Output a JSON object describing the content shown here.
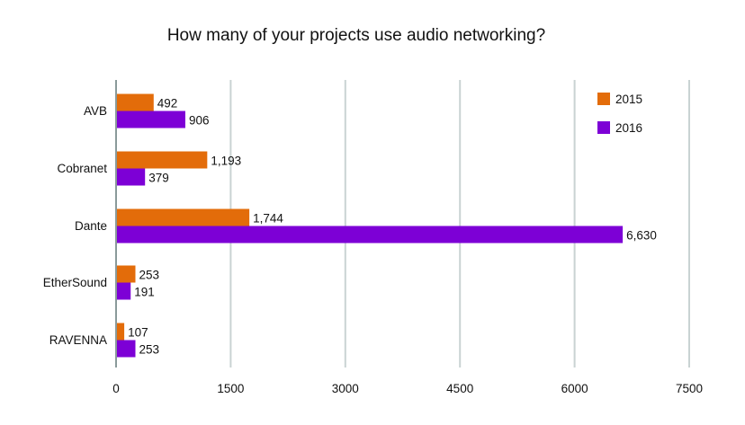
{
  "chart_data": {
    "type": "bar",
    "orientation": "horizontal",
    "title": "How many of your projects use audio networking?",
    "xlabel": "",
    "ylabel": "",
    "categories": [
      "AVB",
      "Cobranet",
      "Dante",
      "EtherSound",
      "RAVENNA"
    ],
    "series": [
      {
        "name": "2015",
        "color": "#e36c0a",
        "values": [
          492,
          1193,
          1744,
          253,
          107
        ],
        "labels": [
          "492",
          "1,193",
          "1,744",
          "253",
          "107"
        ]
      },
      {
        "name": "2016",
        "color": "#7d00d6",
        "values": [
          906,
          379,
          6630,
          191,
          253
        ],
        "labels": [
          "906",
          "379",
          "6,630",
          "191",
          "253"
        ]
      }
    ],
    "xlim": [
      0,
      7500
    ],
    "xticks": [
      0,
      1500,
      3000,
      4500,
      6000,
      7500
    ],
    "xtick_labels": [
      "0",
      "1500",
      "3000",
      "4500",
      "6000",
      "7500"
    ],
    "grid": "vertical",
    "gridline_color": "#c9d3d3",
    "legend": "top-right"
  }
}
